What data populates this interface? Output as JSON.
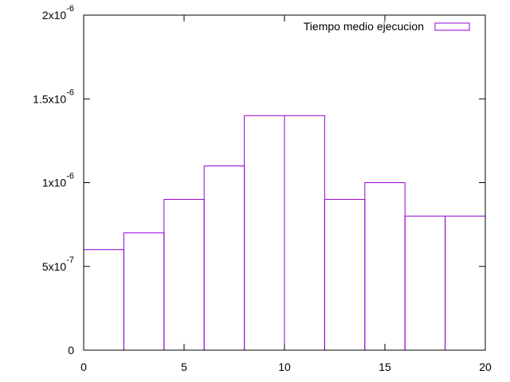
{
  "chart_data": {
    "type": "bar",
    "title": "",
    "xlabel": "",
    "ylabel": "",
    "x_ticks": [
      "0",
      "5",
      "10",
      "15",
      "20"
    ],
    "y_ticks": [
      {
        "value": 0,
        "base": "0",
        "exp": ""
      },
      {
        "value": 5e-07,
        "base": "5x10",
        "exp": "-7"
      },
      {
        "value": 1e-06,
        "base": "1x10",
        "exp": "-6"
      },
      {
        "value": 1.5e-06,
        "base": "1.5x10",
        "exp": "-6"
      },
      {
        "value": 2e-06,
        "base": "2x10",
        "exp": "-6"
      }
    ],
    "xlim": [
      0,
      20
    ],
    "ylim": [
      0,
      2e-06
    ],
    "bin_width": 2,
    "x": [
      1,
      3,
      5,
      7,
      9,
      11,
      13,
      15,
      17,
      19
    ],
    "series": [
      {
        "name": "Tiempo medio ejecucion",
        "color": "#9400d3",
        "values": [
          6e-07,
          7e-07,
          9e-07,
          1.1e-06,
          1.4e-06,
          1.4e-06,
          9e-07,
          1e-06,
          8e-07,
          8e-07
        ]
      }
    ],
    "legend_position": "top-right",
    "grid": false
  }
}
